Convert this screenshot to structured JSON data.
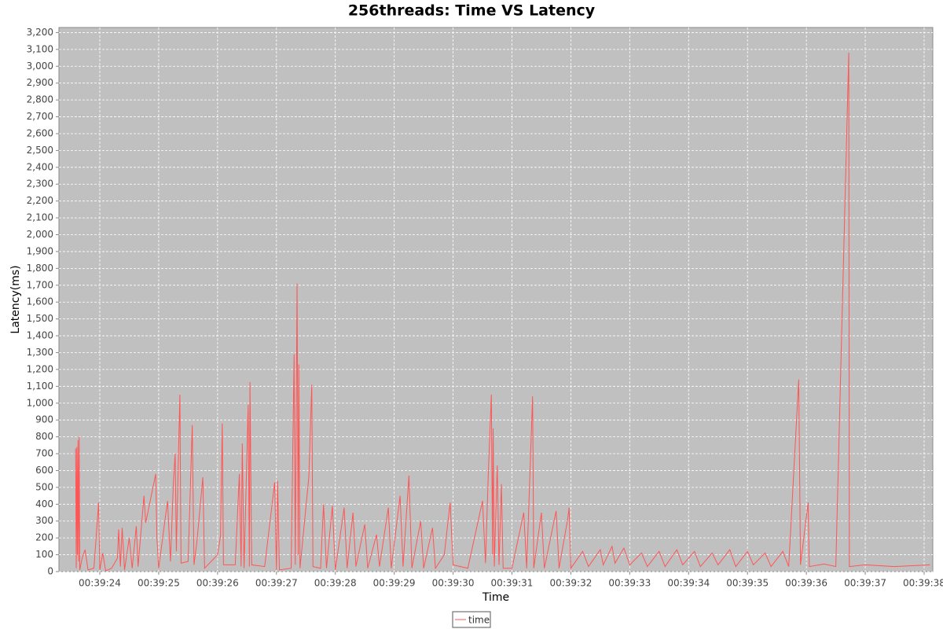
{
  "chart_data": {
    "type": "line",
    "title": "256threads: Time VS Latency",
    "x_label": "Time",
    "y_label": "Latency(ms)",
    "x": [
      23.59,
      23.6,
      23.61,
      23.62,
      23.63,
      23.64,
      23.65,
      23.66,
      23.7,
      23.75,
      23.8,
      23.9,
      23.98,
      24.0,
      24.05,
      24.1,
      24.2,
      24.3,
      24.32,
      24.35,
      24.38,
      24.42,
      24.5,
      24.55,
      24.62,
      24.65,
      24.75,
      24.78,
      24.95,
      24.97,
      25.0,
      25.15,
      25.2,
      25.25,
      25.28,
      25.3,
      25.33,
      25.36,
      25.38,
      25.5,
      25.57,
      25.6,
      25.65,
      25.75,
      25.78,
      26.0,
      26.05,
      26.08,
      26.1,
      26.3,
      26.37,
      26.4,
      26.42,
      26.45,
      26.52,
      26.54,
      26.55,
      26.58,
      26.8,
      26.97,
      27.0,
      27.02,
      27.05,
      27.25,
      27.3,
      27.32,
      27.35,
      27.37,
      27.38,
      27.4,
      27.55,
      27.6,
      27.62,
      27.75,
      27.8,
      27.85,
      27.95,
      28.0,
      28.15,
      28.2,
      28.3,
      28.35,
      28.5,
      28.55,
      28.7,
      28.75,
      28.9,
      28.95,
      29.1,
      29.15,
      29.25,
      29.3,
      29.45,
      29.5,
      29.65,
      29.7,
      29.85,
      29.95,
      30.0,
      30.25,
      30.5,
      30.55,
      30.6,
      30.65,
      30.67,
      30.68,
      30.7,
      30.75,
      30.78,
      30.82,
      30.85,
      31.0,
      31.2,
      31.25,
      31.35,
      31.37,
      31.5,
      31.55,
      31.75,
      31.8,
      31.95,
      31.97,
      32.0,
      32.2,
      32.3,
      32.5,
      32.55,
      32.7,
      32.75,
      32.9,
      33.0,
      33.2,
      33.3,
      33.5,
      33.6,
      33.8,
      33.9,
      34.1,
      34.2,
      34.4,
      34.5,
      34.7,
      34.8,
      35.0,
      35.1,
      35.3,
      35.4,
      35.6,
      35.7,
      35.87,
      35.9,
      36.03,
      36.05,
      36.3,
      36.5,
      36.72,
      36.73,
      37.0,
      37.5,
      38.1
    ],
    "series": [
      {
        "name": "time",
        "color": "#ff5555",
        "values": [
          730,
          20,
          740,
          100,
          780,
          60,
          800,
          10,
          80,
          130,
          10,
          20,
          410,
          10,
          110,
          5,
          20,
          80,
          250,
          30,
          260,
          10,
          200,
          20,
          270,
          30,
          450,
          290,
          580,
          200,
          20,
          420,
          60,
          530,
          700,
          120,
          600,
          1050,
          50,
          60,
          870,
          40,
          180,
          560,
          20,
          100,
          210,
          880,
          40,
          40,
          580,
          30,
          760,
          20,
          990,
          30,
          1125,
          40,
          30,
          530,
          10,
          540,
          10,
          20,
          1290,
          40,
          1710,
          100,
          1230,
          20,
          560,
          1110,
          30,
          20,
          400,
          20,
          390,
          10,
          380,
          20,
          350,
          30,
          280,
          20,
          220,
          30,
          380,
          20,
          450,
          30,
          570,
          20,
          300,
          20,
          260,
          20,
          100,
          410,
          40,
          20,
          420,
          50,
          600,
          1050,
          100,
          850,
          30,
          630,
          40,
          520,
          20,
          20,
          350,
          20,
          1040,
          20,
          350,
          20,
          360,
          20,
          320,
          380,
          20,
          120,
          30,
          130,
          40,
          150,
          50,
          140,
          40,
          110,
          30,
          120,
          30,
          130,
          40,
          120,
          30,
          110,
          40,
          130,
          30,
          120,
          40,
          110,
          30,
          120,
          30,
          1140,
          40,
          410,
          30,
          45,
          30,
          3080,
          30,
          40,
          30,
          40
        ]
      }
    ],
    "xlim": [
      23.306,
      38.147
    ],
    "xticks": [
      {
        "value": 24,
        "label": "00:39:24"
      },
      {
        "value": 25,
        "label": "00:39:25"
      },
      {
        "value": 26,
        "label": "00:39:26"
      },
      {
        "value": 27,
        "label": "00:39:27"
      },
      {
        "value": 28,
        "label": "00:39:28"
      },
      {
        "value": 29,
        "label": "00:39:29"
      },
      {
        "value": 30,
        "label": "00:39:30"
      },
      {
        "value": 31,
        "label": "00:39:31"
      },
      {
        "value": 32,
        "label": "00:39:32"
      },
      {
        "value": 33,
        "label": "00:39:33"
      },
      {
        "value": 34,
        "label": "00:39:34"
      },
      {
        "value": 35,
        "label": "00:39:35"
      },
      {
        "value": 36,
        "label": "00:39:36"
      },
      {
        "value": 37,
        "label": "00:39:37"
      },
      {
        "value": 38,
        "label": "00:39:38"
      }
    ],
    "ylim": [
      0,
      3230
    ],
    "yticks": [
      0,
      100,
      200,
      300,
      400,
      500,
      600,
      700,
      800,
      900,
      {
        "value": 1000,
        "label": "1,000"
      },
      {
        "value": 1100,
        "label": "1,100"
      },
      {
        "value": 1200,
        "label": "1,200"
      },
      {
        "value": 1300,
        "label": "1,300"
      },
      {
        "value": 1400,
        "label": "1,400"
      },
      {
        "value": 1500,
        "label": "1,500"
      },
      {
        "value": 1600,
        "label": "1,600"
      },
      {
        "value": 1700,
        "label": "1,700"
      },
      {
        "value": 1800,
        "label": "1,800"
      },
      {
        "value": 1900,
        "label": "1,900"
      },
      {
        "value": 2000,
        "label": "2,000"
      },
      {
        "value": 2100,
        "label": "2,100"
      },
      {
        "value": 2200,
        "label": "2,200"
      },
      {
        "value": 2300,
        "label": "2,300"
      },
      {
        "value": 2400,
        "label": "2,400"
      },
      {
        "value": 2500,
        "label": "2,500"
      },
      {
        "value": 2600,
        "label": "2,600"
      },
      {
        "value": 2700,
        "label": "2,700"
      },
      {
        "value": 2800,
        "label": "2,800"
      },
      {
        "value": 2900,
        "label": "2,900"
      },
      {
        "value": 3000,
        "label": "3,000"
      },
      {
        "value": 3100,
        "label": "3,100"
      },
      {
        "value": 3200,
        "label": "3,200"
      }
    ],
    "grid": true,
    "legend": "bottom"
  }
}
